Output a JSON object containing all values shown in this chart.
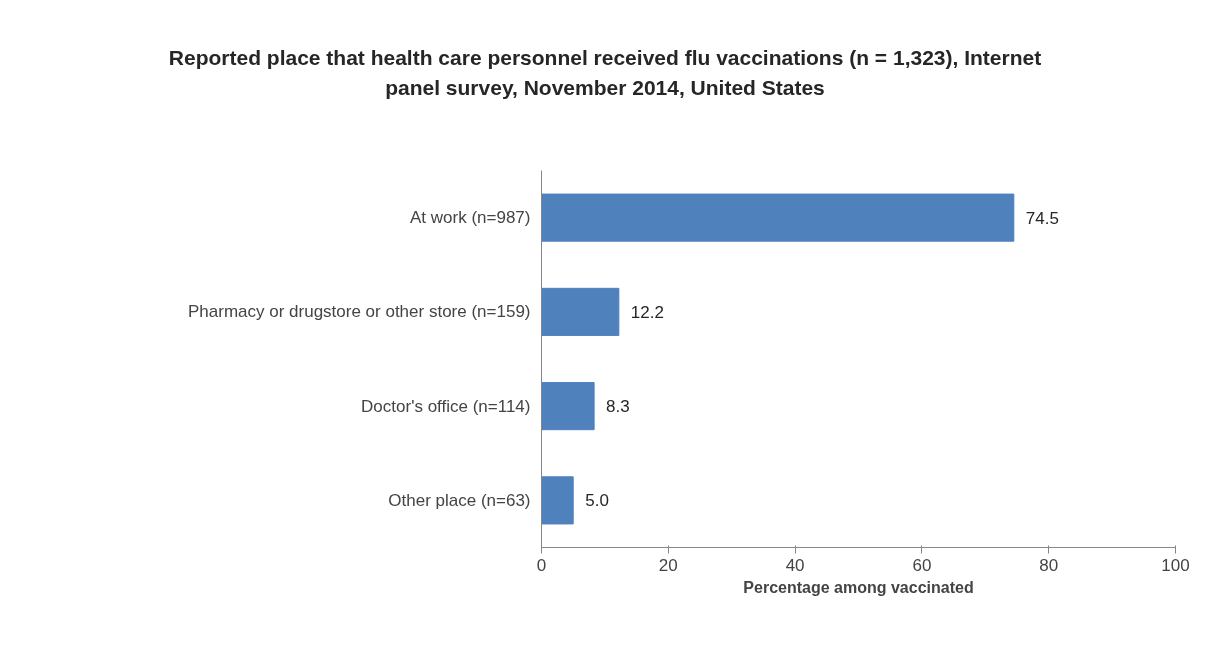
{
  "chart_data": {
    "type": "bar",
    "orientation": "horizontal",
    "title": "Reported place that health care personnel received flu vaccinations (n = 1,323), Internet panel survey, November 2014, United States",
    "categories": [
      "At work (n=987)",
      "Pharmacy or drugstore or other store (n=159)",
      "Doctor's office (n=114)",
      "Other place (n=63)"
    ],
    "values": [
      74.5,
      12.2,
      8.3,
      5.0
    ],
    "value_labels": [
      "74.5",
      "12.2",
      "8.3",
      "5.0"
    ],
    "color": "#4f81bd",
    "xlabel": "Percentage among vaccinated",
    "xlim": [
      0,
      100
    ],
    "xticks": [
      0,
      20,
      40,
      60,
      80,
      100
    ],
    "data_labels": true,
    "grid": false,
    "legend": false
  }
}
